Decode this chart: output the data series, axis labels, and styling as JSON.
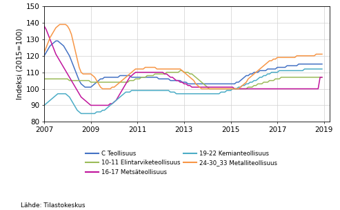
{
  "ylabel": "Indeksi (2015=100)",
  "source": "Lähde: Tilastokeskus",
  "xlim": [
    2007.0,
    2019.25
  ],
  "ylim": [
    80,
    150
  ],
  "yticks": [
    80,
    90,
    100,
    110,
    120,
    130,
    140,
    150
  ],
  "xticks": [
    2007,
    2009,
    2011,
    2013,
    2015,
    2017,
    2019
  ],
  "series": {
    "C Teollisuus": {
      "color": "#4472C4",
      "data": [
        120,
        122,
        124,
        126,
        127,
        128,
        129,
        129,
        128,
        127,
        126,
        124,
        122,
        120,
        117,
        114,
        111,
        108,
        105,
        103,
        102,
        101,
        101,
        101,
        101,
        102,
        103,
        104,
        105,
        106,
        106,
        107,
        107,
        107,
        107,
        107,
        107,
        107,
        107,
        108,
        108,
        108,
        108,
        108,
        108,
        107,
        107,
        107,
        107,
        107,
        107,
        107,
        107,
        107,
        107,
        107,
        107,
        107,
        107,
        106,
        106,
        106,
        106,
        106,
        106,
        105,
        105,
        105,
        105,
        105,
        105,
        104,
        104,
        104,
        103,
        103,
        103,
        103,
        103,
        103,
        103,
        103,
        103,
        103,
        103,
        103,
        103,
        103,
        103,
        103,
        103,
        103,
        103,
        103,
        103,
        103,
        103,
        103,
        103,
        104,
        104,
        105,
        106,
        107,
        108,
        108,
        109,
        109,
        110,
        110,
        110,
        111,
        111,
        111,
        111,
        112,
        112,
        112,
        112,
        112,
        113,
        113,
        113,
        113,
        113,
        114,
        114,
        114,
        114,
        114,
        114,
        115,
        115,
        115,
        115,
        115,
        115,
        115,
        115,
        115,
        115,
        115,
        115,
        115
      ]
    },
    "10-11 Elintarviketeollisuus": {
      "color": "#9BBB59",
      "data": [
        106,
        106,
        106,
        106,
        106,
        106,
        106,
        106,
        106,
        106,
        106,
        106,
        106,
        105,
        105,
        105,
        105,
        105,
        105,
        105,
        105,
        105,
        105,
        105,
        104,
        104,
        104,
        104,
        104,
        104,
        104,
        104,
        104,
        104,
        104,
        104,
        104,
        104,
        104,
        104,
        104,
        104,
        104,
        104,
        105,
        105,
        105,
        106,
        106,
        106,
        107,
        107,
        107,
        108,
        108,
        108,
        108,
        109,
        109,
        109,
        109,
        109,
        109,
        110,
        110,
        110,
        110,
        110,
        110,
        110,
        111,
        111,
        110,
        110,
        110,
        109,
        109,
        108,
        107,
        106,
        105,
        104,
        103,
        102,
        101,
        100,
        100,
        100,
        100,
        100,
        100,
        100,
        100,
        100,
        100,
        100,
        100,
        100,
        100,
        100,
        100,
        100,
        100,
        100,
        100,
        101,
        101,
        101,
        102,
        102,
        103,
        103,
        103,
        104,
        104,
        104,
        105,
        105,
        105,
        106,
        106,
        106,
        107,
        107,
        107,
        107,
        107,
        107,
        107,
        107,
        107,
        107,
        107,
        107,
        107,
        107,
        107,
        107,
        107,
        107,
        107,
        107,
        107,
        107
      ]
    },
    "16-17 Metsäteollisuus": {
      "color": "#C0149C",
      "data": [
        138,
        136,
        133,
        130,
        127,
        124,
        121,
        119,
        117,
        115,
        113,
        111,
        109,
        107,
        105,
        103,
        101,
        99,
        97,
        95,
        94,
        93,
        92,
        91,
        90,
        90,
        90,
        90,
        90,
        90,
        90,
        90,
        90,
        90,
        91,
        91,
        92,
        93,
        95,
        97,
        99,
        101,
        103,
        105,
        107,
        108,
        109,
        110,
        110,
        110,
        110,
        110,
        110,
        110,
        110,
        110,
        110,
        110,
        110,
        110,
        110,
        110,
        109,
        109,
        108,
        107,
        107,
        106,
        105,
        105,
        104,
        104,
        103,
        103,
        102,
        102,
        101,
        101,
        101,
        101,
        101,
        101,
        101,
        101,
        101,
        101,
        101,
        101,
        101,
        101,
        101,
        101,
        101,
        101,
        101,
        101,
        101,
        101,
        100,
        100,
        100,
        100,
        100,
        100,
        100,
        100,
        100,
        100,
        100,
        100,
        100,
        100,
        100,
        100,
        100,
        100,
        100,
        100,
        100,
        100,
        100,
        100,
        100,
        100,
        100,
        100,
        100,
        100,
        100,
        100,
        100,
        100,
        100,
        100,
        100,
        100,
        100,
        100,
        100,
        100,
        100,
        100,
        107,
        107
      ]
    },
    "19-22 Kemianteollisuus": {
      "color": "#4BACC6",
      "data": [
        90,
        91,
        92,
        93,
        94,
        95,
        96,
        97,
        97,
        97,
        97,
        97,
        96,
        95,
        93,
        91,
        89,
        87,
        86,
        85,
        85,
        85,
        85,
        85,
        85,
        85,
        85,
        86,
        86,
        86,
        87,
        87,
        88,
        89,
        90,
        91,
        92,
        93,
        94,
        95,
        96,
        97,
        98,
        98,
        98,
        99,
        99,
        99,
        99,
        99,
        99,
        99,
        99,
        99,
        99,
        99,
        99,
        99,
        99,
        99,
        99,
        99,
        99,
        99,
        99,
        98,
        98,
        98,
        97,
        97,
        97,
        97,
        97,
        97,
        97,
        97,
        97,
        97,
        97,
        97,
        97,
        97,
        97,
        97,
        97,
        97,
        97,
        97,
        97,
        97,
        97,
        98,
        98,
        98,
        99,
        99,
        99,
        100,
        100,
        100,
        101,
        101,
        102,
        102,
        103,
        103,
        104,
        104,
        105,
        105,
        106,
        107,
        107,
        108,
        108,
        109,
        109,
        110,
        110,
        110,
        110,
        111,
        111,
        111,
        111,
        111,
        111,
        111,
        111,
        111,
        111,
        111,
        111,
        111,
        112,
        112,
        112,
        112,
        112,
        112,
        112,
        112,
        112,
        112
      ]
    },
    "24-30_33 Metalliteollisuus": {
      "color": "#F79646",
      "data": [
        122,
        125,
        128,
        131,
        133,
        135,
        137,
        138,
        139,
        139,
        139,
        139,
        138,
        136,
        133,
        128,
        123,
        118,
        113,
        110,
        109,
        109,
        109,
        109,
        109,
        108,
        107,
        105,
        103,
        101,
        100,
        100,
        100,
        100,
        100,
        101,
        101,
        102,
        103,
        104,
        105,
        106,
        107,
        108,
        109,
        110,
        111,
        112,
        112,
        112,
        112,
        112,
        113,
        113,
        113,
        113,
        113,
        113,
        112,
        112,
        112,
        112,
        112,
        112,
        112,
        112,
        112,
        112,
        112,
        112,
        112,
        111,
        110,
        109,
        108,
        107,
        106,
        105,
        103,
        102,
        101,
        100,
        100,
        100,
        100,
        100,
        100,
        100,
        100,
        100,
        100,
        100,
        100,
        100,
        100,
        100,
        100,
        100,
        100,
        100,
        100,
        101,
        102,
        103,
        104,
        106,
        107,
        108,
        109,
        110,
        111,
        112,
        113,
        114,
        115,
        116,
        117,
        117,
        118,
        118,
        119,
        119,
        119,
        119,
        119,
        119,
        119,
        119,
        119,
        119,
        120,
        120,
        120,
        120,
        120,
        120,
        120,
        120,
        120,
        120,
        121,
        121,
        121,
        121
      ]
    }
  },
  "legend_order": [
    {
      "label": "C Teollisuus",
      "color": "#4472C4"
    },
    {
      "label": "10-11 Elintarviketeollisuus",
      "color": "#9BBB59"
    },
    {
      "label": "16-17 Metsäteollisuus",
      "color": "#C0149C"
    },
    {
      "label": "19-22 Kemianteollisuus",
      "color": "#4BACC6"
    },
    {
      "label": "24-30_33 Metalliteollisuus",
      "color": "#F79646"
    }
  ]
}
